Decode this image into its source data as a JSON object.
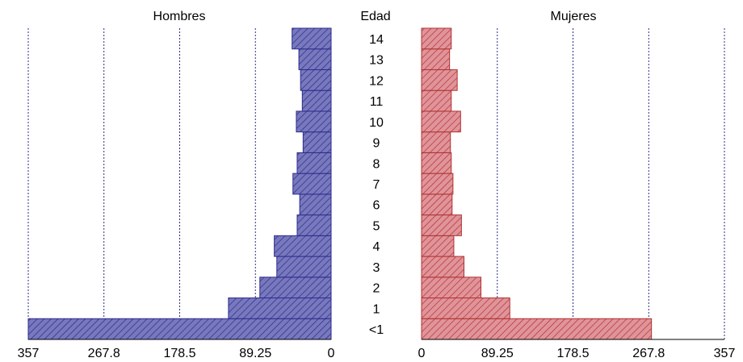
{
  "chart_data": {
    "type": "bar",
    "subtype": "population-pyramid",
    "center_label": "Edad",
    "categories": [
      "<1",
      "1",
      "2",
      "3",
      "4",
      "5",
      "6",
      "7",
      "8",
      "9",
      "10",
      "11",
      "12",
      "13",
      "14"
    ],
    "series": [
      {
        "name": "Hombres",
        "color": "#2b2b8c",
        "fill": "#6c6cb4",
        "values": [
          357,
          121,
          84,
          64,
          67,
          40,
          37,
          45,
          40,
          33,
          41,
          34,
          36,
          38,
          46
        ]
      },
      {
        "name": "Mujeres",
        "color": "#b03030",
        "fill": "#d8888c",
        "values": [
          271,
          104,
          70,
          50,
          38,
          47,
          36,
          37,
          35,
          34,
          46,
          35,
          42,
          33,
          35
        ]
      }
    ],
    "xlim": [
      0,
      357
    ],
    "ticks": [
      "0",
      "89.25",
      "178.5",
      "267.8",
      "357"
    ],
    "grid": "vertical-dotted"
  }
}
